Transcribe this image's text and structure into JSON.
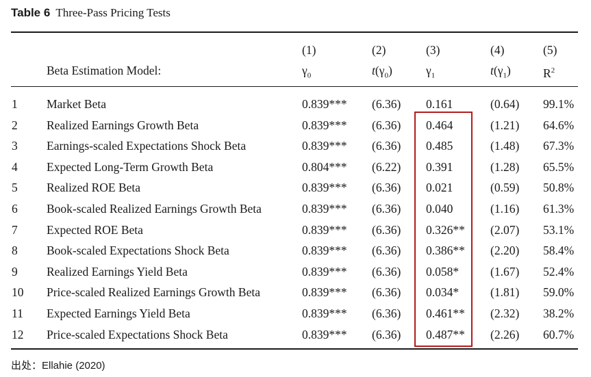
{
  "caption": {
    "label": "Table 6",
    "title": "Three-Pass Pricing Tests"
  },
  "header": {
    "model_label": "Beta Estimation Model:",
    "columns": [
      {
        "num": "(1)",
        "name": "γ0"
      },
      {
        "num": "(2)",
        "name": "t(γ0)"
      },
      {
        "num": "(3)",
        "name": "γ1"
      },
      {
        "num": "(4)",
        "name": "t(γ1)"
      },
      {
        "num": "(5)",
        "name": "R2"
      }
    ]
  },
  "rows": [
    {
      "num": "1",
      "model": "Market Beta",
      "g0": "0.839***",
      "tg0": "(6.36)",
      "g1": "0.161",
      "tg1": "(0.64)",
      "r2": "99.1%"
    },
    {
      "num": "2",
      "model": "Realized Earnings Growth Beta",
      "g0": "0.839***",
      "tg0": "(6.36)",
      "g1": "0.464",
      "tg1": "(1.21)",
      "r2": "64.6%"
    },
    {
      "num": "3",
      "model": "Earnings-scaled Expectations Shock Beta",
      "g0": "0.839***",
      "tg0": "(6.36)",
      "g1": "0.485",
      "tg1": "(1.48)",
      "r2": "67.3%"
    },
    {
      "num": "4",
      "model": "Expected Long-Term Growth Beta",
      "g0": "0.804***",
      "tg0": "(6.22)",
      "g1": "0.391",
      "tg1": "(1.28)",
      "r2": "65.5%"
    },
    {
      "num": "5",
      "model": "Realized ROE Beta",
      "g0": "0.839***",
      "tg0": "(6.36)",
      "g1": "0.021",
      "tg1": "(0.59)",
      "r2": "50.8%"
    },
    {
      "num": "6",
      "model": "Book-scaled Realized Earnings Growth Beta",
      "g0": "0.839***",
      "tg0": "(6.36)",
      "g1": "0.040",
      "tg1": "(1.16)",
      "r2": "61.3%"
    },
    {
      "num": "7",
      "model": "Expected ROE Beta",
      "g0": "0.839***",
      "tg0": "(6.36)",
      "g1": "0.326**",
      "tg1": "(2.07)",
      "r2": "53.1%"
    },
    {
      "num": "8",
      "model": "Book-scaled Expectations Shock Beta",
      "g0": "0.839***",
      "tg0": "(6.36)",
      "g1": "0.386**",
      "tg1": "(2.20)",
      "r2": "58.4%"
    },
    {
      "num": "9",
      "model": "Realized Earnings Yield Beta",
      "g0": "0.839***",
      "tg0": "(6.36)",
      "g1": "0.058*",
      "tg1": "(1.67)",
      "r2": "52.4%"
    },
    {
      "num": "10",
      "model": "Price-scaled Realized Earnings Growth Beta",
      "g0": "0.839***",
      "tg0": "(6.36)",
      "g1": "0.034*",
      "tg1": "(1.81)",
      "r2": "59.0%"
    },
    {
      "num": "11",
      "model": "Expected Earnings Yield Beta",
      "g0": "0.839***",
      "tg0": "(6.36)",
      "g1": "0.461**",
      "tg1": "(2.32)",
      "r2": "38.2%"
    },
    {
      "num": "12",
      "model": "Price-scaled Expectations Shock Beta",
      "g0": "0.839***",
      "tg0": "(6.36)",
      "g1": "0.487**",
      "tg1": "(2.26)",
      "r2": "60.7%"
    }
  ],
  "source": "出处：Ellahie (2020)",
  "colors": {
    "text": "#1a1a1a",
    "highlight_border": "#b01c1c"
  }
}
